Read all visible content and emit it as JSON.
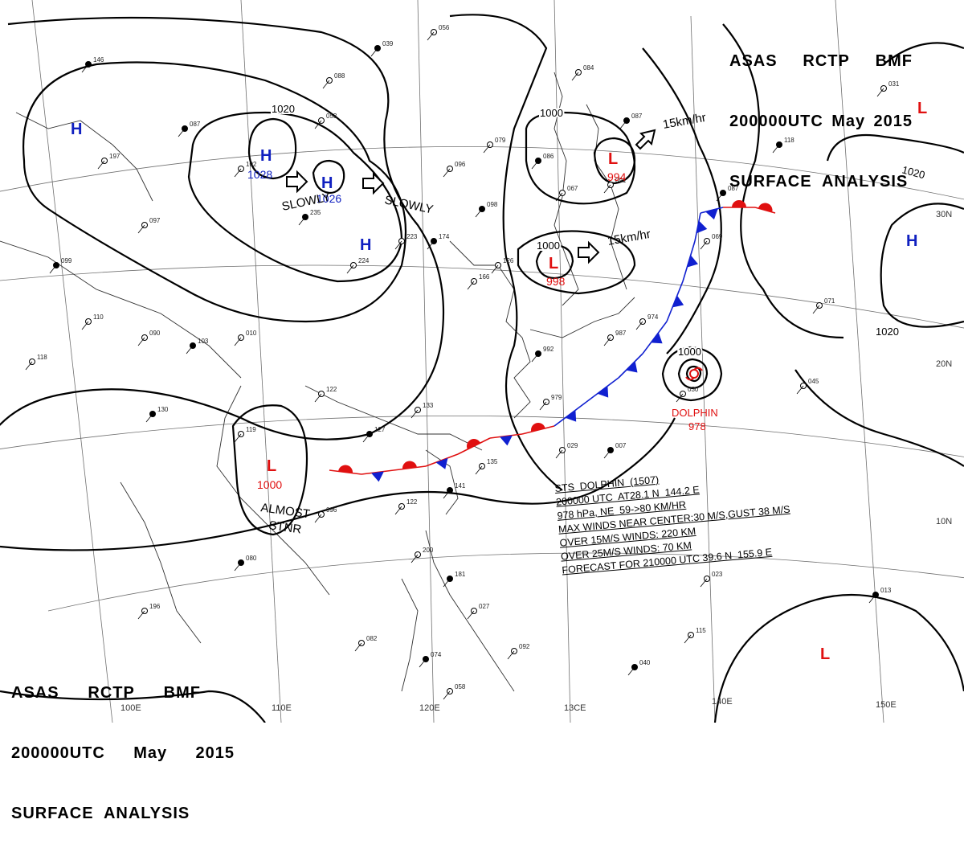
{
  "header": {
    "line1": [
      "ASAS",
      "RCTP",
      "BMF"
    ],
    "line2": [
      "200000UTC",
      "May",
      "2015"
    ],
    "line3": "SURFACE  ANALYSIS"
  },
  "grid_labels": {
    "lon": [
      "100E",
      "110E",
      "120E",
      "13CE",
      "140E",
      "150E"
    ],
    "lat": [
      "30N",
      "20N",
      "10N"
    ]
  },
  "isobar_labels": {
    "i1020_nw": "1020",
    "i1000_north": "1000",
    "i1000_mid": "1000",
    "i1020_east": "1020",
    "i1020_se": "1020",
    "i1000_typhoon": "1000"
  },
  "pressure_centers": [
    {
      "kind": "H",
      "value": "",
      "color": "#1020c0"
    },
    {
      "kind": "H",
      "value": "1028",
      "color": "#1020c0"
    },
    {
      "kind": "H",
      "value": "1026",
      "color": "#1020c0"
    },
    {
      "kind": "H",
      "value": "",
      "color": "#1020c0"
    },
    {
      "kind": "L",
      "value": "994",
      "color": "#e01010"
    },
    {
      "kind": "L",
      "value": "998",
      "color": "#e01010"
    },
    {
      "kind": "L",
      "value": "1000",
      "color": "#e01010"
    },
    {
      "kind": "L",
      "value": "",
      "color": "#e01010"
    },
    {
      "kind": "H",
      "value": "",
      "color": "#1020c0"
    },
    {
      "kind": "L",
      "value": "",
      "color": "#e01010"
    }
  ],
  "motion_labels": {
    "slowly_1": "SLOWLY",
    "slowly_2": "SLOWLY",
    "speed_1": "15km/hr",
    "speed_2": "15km/hr",
    "almost": "ALMOST",
    "stnr": "STNR"
  },
  "typhoon": {
    "name": "DOLPHIN",
    "pressure": "978"
  },
  "storm_info": {
    "line1": "STS  DOLPHIN  (1507)",
    "line2": "200000 UTC  AT28.1 N  144.2 E",
    "line3": "978 hPa, NE  59->80 KM/HR",
    "line4": "MAX WINDS NEAR CENTER:30 M/S,GUST 38 M/S",
    "line5": "OVER 15M/S WINDS: 220 KM",
    "line6": "OVER 25M/S WINDS: 70 KM",
    "line7": "FORECAST FOR 210000 UTC 39.6 N  155.9 E"
  },
  "station_numbers": [
    "146",
    "197",
    "102",
    "235",
    "224",
    "223",
    "174",
    "166",
    "126",
    "098",
    "096",
    "079",
    "086",
    "067",
    "091",
    "087",
    "084",
    "056",
    "039",
    "053",
    "088",
    "087",
    "097",
    "118",
    "130",
    "119",
    "122",
    "127",
    "133",
    "135",
    "141",
    "122",
    "096",
    "080",
    "196",
    "200",
    "181",
    "027",
    "082",
    "074",
    "092",
    "058",
    "040",
    "115",
    "023",
    "013",
    "045",
    "071",
    "118",
    "031",
    "069",
    "087",
    "974",
    "987",
    "992",
    "979",
    "029",
    "007",
    "030",
    "090",
    "103",
    "010",
    "110",
    "099",
    "190"
  ],
  "colors": {
    "warm_front": "#e01010",
    "cold_front": "#1020d0",
    "isobar": "#000000",
    "graticule": "#707070",
    "coast": "#303030"
  }
}
